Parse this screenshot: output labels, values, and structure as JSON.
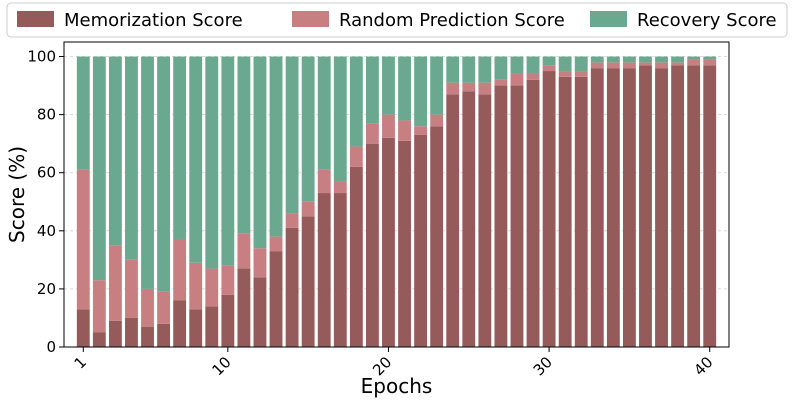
{
  "chart_data": {
    "type": "bar",
    "stacked": true,
    "x": [
      1,
      2,
      3,
      4,
      5,
      6,
      7,
      8,
      9,
      10,
      11,
      12,
      13,
      14,
      15,
      16,
      17,
      18,
      19,
      20,
      21,
      22,
      23,
      24,
      25,
      26,
      27,
      28,
      29,
      30,
      31,
      32,
      33,
      34,
      35,
      36,
      37,
      38,
      39,
      40
    ],
    "xticks": [
      1,
      10,
      20,
      30,
      40
    ],
    "xlabel": "Epochs",
    "ylabel": "Score (%)",
    "ylim": [
      0,
      105
    ],
    "yticks": [
      0,
      20,
      40,
      60,
      80,
      100
    ],
    "grid": true,
    "legend_position": "top",
    "series": [
      {
        "name": "Memorization Score",
        "color": "#955b5b",
        "values": [
          13,
          5,
          9,
          10,
          7,
          8,
          16,
          13,
          14,
          18,
          27,
          24,
          33,
          41,
          45,
          53,
          53,
          62,
          70,
          72,
          71,
          73,
          76,
          87,
          88,
          87,
          90,
          90,
          92,
          95,
          93,
          93,
          96,
          96,
          96,
          97,
          96,
          97,
          97,
          97
        ]
      },
      {
        "name": "Random Prediction Score",
        "color": "#c77f82",
        "values": [
          48,
          18,
          26,
          20,
          13,
          11,
          21,
          16,
          13,
          10,
          12,
          10,
          5,
          5,
          5,
          8,
          4,
          7,
          7,
          8,
          7,
          3,
          4,
          4,
          3,
          4,
          2,
          4,
          2,
          2,
          2,
          2,
          2,
          2,
          2,
          1,
          2,
          1,
          2,
          2
        ]
      },
      {
        "name": "Recovery Score",
        "color": "#6aa88f",
        "values": [
          39,
          77,
          65,
          70,
          80,
          81,
          63,
          71,
          73,
          72,
          61,
          66,
          62,
          54,
          50,
          39,
          43,
          31,
          23,
          20,
          22,
          24,
          20,
          9,
          9,
          9,
          8,
          6,
          6,
          3,
          5,
          5,
          2,
          2,
          2,
          2,
          2,
          2,
          1,
          1
        ]
      }
    ]
  }
}
